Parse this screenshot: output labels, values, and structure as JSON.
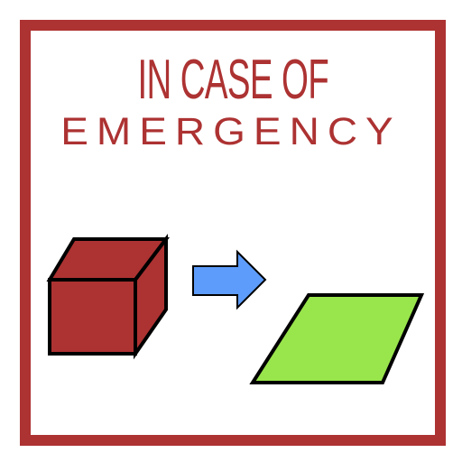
{
  "sign": {
    "title_line1": "IN CASE OF",
    "title_line2": "EMERGENCY"
  },
  "colors": {
    "border": "#ad3232",
    "title_text": "#ad3232",
    "cube": "#ad3232",
    "arrow": "#5d9cfa",
    "flat_tile": "#99e54c",
    "outline": "#000000",
    "background": "#ffffff"
  },
  "icons": {
    "cube": "cube-icon",
    "arrow": "arrow-right-icon",
    "flat_shape": "flat-parallelogram-icon"
  }
}
